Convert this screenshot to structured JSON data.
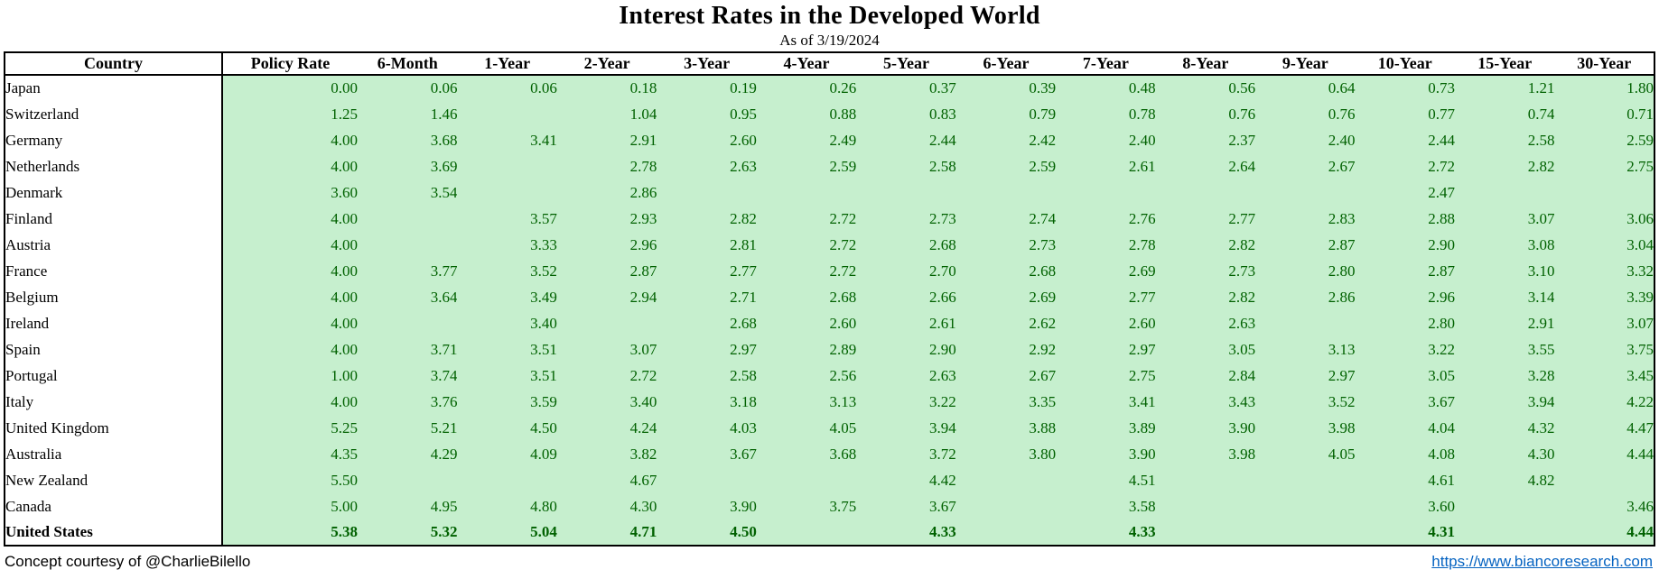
{
  "header": {
    "title": "Interest Rates in the Developed World",
    "subtitle": "As of 3/19/2024"
  },
  "footer": {
    "credit": "Concept courtesy of @CharlieBilello",
    "link": "https://www.biancoresearch.com"
  },
  "colors": {
    "cell_bg": "#c6efce",
    "cell_text": "#006100",
    "link": "#0563c1",
    "border": "#000000"
  },
  "chart_data": {
    "type": "table",
    "title": "Interest Rates in the Developed World",
    "subtitle": "As of 3/19/2024",
    "columns": [
      "Country",
      "Policy Rate",
      "6-Month",
      "1-Year",
      "2-Year",
      "3-Year",
      "4-Year",
      "5-Year",
      "6-Year",
      "7-Year",
      "8-Year",
      "9-Year",
      "10-Year",
      "15-Year",
      "30-Year"
    ],
    "rows": [
      {
        "country": "Japan",
        "bold": false,
        "values": [
          "0.00",
          "0.06",
          "0.06",
          "0.18",
          "0.19",
          "0.26",
          "0.37",
          "0.39",
          "0.48",
          "0.56",
          "0.64",
          "0.73",
          "1.21",
          "1.80"
        ]
      },
      {
        "country": "Switzerland",
        "bold": false,
        "values": [
          "1.25",
          "1.46",
          "",
          "1.04",
          "0.95",
          "0.88",
          "0.83",
          "0.79",
          "0.78",
          "0.76",
          "0.76",
          "0.77",
          "0.74",
          "0.71"
        ]
      },
      {
        "country": "Germany",
        "bold": false,
        "values": [
          "4.00",
          "3.68",
          "3.41",
          "2.91",
          "2.60",
          "2.49",
          "2.44",
          "2.42",
          "2.40",
          "2.37",
          "2.40",
          "2.44",
          "2.58",
          "2.59"
        ]
      },
      {
        "country": "Netherlands",
        "bold": false,
        "values": [
          "4.00",
          "3.69",
          "",
          "2.78",
          "2.63",
          "2.59",
          "2.58",
          "2.59",
          "2.61",
          "2.64",
          "2.67",
          "2.72",
          "2.82",
          "2.75"
        ]
      },
      {
        "country": "Denmark",
        "bold": false,
        "values": [
          "3.60",
          "3.54",
          "",
          "2.86",
          "",
          "",
          "",
          "",
          "",
          "",
          "",
          "2.47",
          "",
          ""
        ]
      },
      {
        "country": "Finland",
        "bold": false,
        "values": [
          "4.00",
          "",
          "3.57",
          "2.93",
          "2.82",
          "2.72",
          "2.73",
          "2.74",
          "2.76",
          "2.77",
          "2.83",
          "2.88",
          "3.07",
          "3.06"
        ]
      },
      {
        "country": "Austria",
        "bold": false,
        "values": [
          "4.00",
          "",
          "3.33",
          "2.96",
          "2.81",
          "2.72",
          "2.68",
          "2.73",
          "2.78",
          "2.82",
          "2.87",
          "2.90",
          "3.08",
          "3.04"
        ]
      },
      {
        "country": "France",
        "bold": false,
        "values": [
          "4.00",
          "3.77",
          "3.52",
          "2.87",
          "2.77",
          "2.72",
          "2.70",
          "2.68",
          "2.69",
          "2.73",
          "2.80",
          "2.87",
          "3.10",
          "3.32"
        ]
      },
      {
        "country": "Belgium",
        "bold": false,
        "values": [
          "4.00",
          "3.64",
          "3.49",
          "2.94",
          "2.71",
          "2.68",
          "2.66",
          "2.69",
          "2.77",
          "2.82",
          "2.86",
          "2.96",
          "3.14",
          "3.39"
        ]
      },
      {
        "country": "Ireland",
        "bold": false,
        "values": [
          "4.00",
          "",
          "3.40",
          "",
          "2.68",
          "2.60",
          "2.61",
          "2.62",
          "2.60",
          "2.63",
          "",
          "2.80",
          "2.91",
          "3.07"
        ]
      },
      {
        "country": "Spain",
        "bold": false,
        "values": [
          "4.00",
          "3.71",
          "3.51",
          "3.07",
          "2.97",
          "2.89",
          "2.90",
          "2.92",
          "2.97",
          "3.05",
          "3.13",
          "3.22",
          "3.55",
          "3.75"
        ]
      },
      {
        "country": "Portugal",
        "bold": false,
        "values": [
          "1.00",
          "3.74",
          "3.51",
          "2.72",
          "2.58",
          "2.56",
          "2.63",
          "2.67",
          "2.75",
          "2.84",
          "2.97",
          "3.05",
          "3.28",
          "3.45"
        ]
      },
      {
        "country": "Italy",
        "bold": false,
        "values": [
          "4.00",
          "3.76",
          "3.59",
          "3.40",
          "3.18",
          "3.13",
          "3.22",
          "3.35",
          "3.41",
          "3.43",
          "3.52",
          "3.67",
          "3.94",
          "4.22"
        ]
      },
      {
        "country": "United Kingdom",
        "bold": false,
        "values": [
          "5.25",
          "5.21",
          "4.50",
          "4.24",
          "4.03",
          "4.05",
          "3.94",
          "3.88",
          "3.89",
          "3.90",
          "3.98",
          "4.04",
          "4.32",
          "4.47"
        ]
      },
      {
        "country": "Australia",
        "bold": false,
        "values": [
          "4.35",
          "4.29",
          "4.09",
          "3.82",
          "3.67",
          "3.68",
          "3.72",
          "3.80",
          "3.90",
          "3.98",
          "4.05",
          "4.08",
          "4.30",
          "4.44"
        ]
      },
      {
        "country": "New Zealand",
        "bold": false,
        "values": [
          "5.50",
          "",
          "",
          "4.67",
          "",
          "",
          "4.42",
          "",
          "4.51",
          "",
          "",
          "4.61",
          "4.82",
          ""
        ]
      },
      {
        "country": "Canada",
        "bold": false,
        "values": [
          "5.00",
          "4.95",
          "4.80",
          "4.30",
          "3.90",
          "3.75",
          "3.67",
          "",
          "3.58",
          "",
          "",
          "3.60",
          "",
          "3.46"
        ]
      },
      {
        "country": "United States",
        "bold": true,
        "values": [
          "5.38",
          "5.32",
          "5.04",
          "4.71",
          "4.50",
          "",
          "4.33",
          "",
          "4.33",
          "",
          "",
          "4.31",
          "",
          "4.44"
        ]
      }
    ]
  }
}
